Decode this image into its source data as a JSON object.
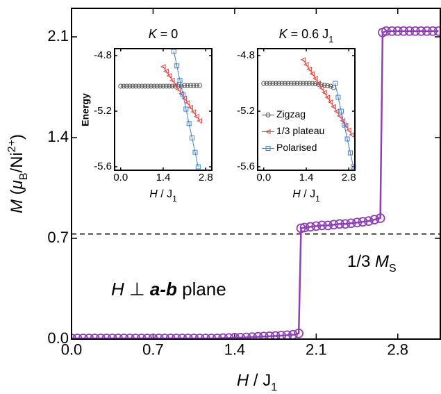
{
  "chart_data": [
    {
      "type": "line",
      "xlabel": [
        "H",
        " / J",
        "1"
      ],
      "ylabel": [
        "M",
        " (",
        "μ",
        "B",
        "/Ni",
        "2+",
        ")"
      ],
      "annotations": [
        [
          "1/3 ",
          "M",
          "S"
        ],
        [
          "H",
          " ⊥ ",
          "a-b",
          " plane"
        ]
      ],
      "ref_line": 0.73,
      "xlim": [
        0,
        3.165
      ],
      "ylim": [
        0,
        2.298
      ],
      "xticks": [
        {
          "value": 0,
          "label": "0.0"
        },
        0.7,
        1.4,
        2.1,
        2.8
      ],
      "yticks": [
        {
          "value": 0,
          "label": "0.0"
        },
        0.7,
        1.4,
        2.1
      ],
      "series": [
        {
          "color": "#8e3fb5",
          "marker": "circle",
          "x": [
            0,
            0.05,
            0.1,
            0.15,
            0.2,
            0.25,
            0.3,
            0.35,
            0.4,
            0.45,
            0.5,
            0.55,
            0.6,
            0.65,
            0.7,
            0.75,
            0.8,
            0.85,
            0.9,
            0.95,
            1,
            1.05,
            1.1,
            1.15,
            1.2,
            1.25,
            1.3,
            1.35,
            1.4,
            1.45,
            1.5,
            1.55,
            1.6,
            1.65,
            1.7,
            1.75,
            1.8,
            1.85,
            1.9,
            1.95,
            1.97,
            2.0,
            2.05,
            2.1,
            2.15,
            2.2,
            2.25,
            2.3,
            2.35,
            2.4,
            2.45,
            2.5,
            2.55,
            2.6,
            2.65,
            2.67,
            2.7,
            2.75,
            2.8,
            2.85,
            2.9,
            2.95,
            3.0,
            3.05,
            3.1,
            3.15
          ],
          "values": [
            0.005,
            0.005,
            0.005,
            0.005,
            0.005,
            0.005,
            0.005,
            0.005,
            0.005,
            0.005,
            0.005,
            0.005,
            0.005,
            0.005,
            0.005,
            0.005,
            0.005,
            0.005,
            0.005,
            0.005,
            0.005,
            0.005,
            0.005,
            0.005,
            0.005,
            0.005,
            0.007,
            0.008,
            0.01,
            0.01,
            0.012,
            0.014,
            0.016,
            0.018,
            0.02,
            0.022,
            0.024,
            0.027,
            0.03,
            0.04,
            0.77,
            0.775,
            0.78,
            0.785,
            0.79,
            0.79,
            0.795,
            0.8,
            0.8,
            0.805,
            0.81,
            0.815,
            0.82,
            0.83,
            0.84,
            2.13,
            2.14,
            2.14,
            2.14,
            2.14,
            2.14,
            2.14,
            2.14,
            2.14,
            2.14,
            2.14
          ]
        }
      ]
    },
    {
      "type": "scatter",
      "title": [
        "K",
        " = 0"
      ],
      "xlabel": [
        "H",
        " / J",
        "1"
      ],
      "ylabel": "Energy",
      "xlim": [
        -0.2,
        3.0
      ],
      "ylim": [
        -5.625,
        -4.75
      ],
      "xticks": [
        {
          "value": 0,
          "label": "0.0"
        },
        1.4,
        2.8
      ],
      "yticks": [
        -4.8,
        -5.2,
        -5.6
      ],
      "series": [
        {
          "name": "Zigzag",
          "color": "#555555",
          "marker": "circle",
          "x": [
            0,
            0.1,
            0.2,
            0.3,
            0.4,
            0.5,
            0.6,
            0.7,
            0.8,
            0.9,
            1,
            1.1,
            1.2,
            1.3,
            1.4,
            1.5,
            1.6,
            1.7,
            1.8,
            1.9,
            2,
            2.1,
            2.2,
            2.3,
            2.4,
            2.5,
            2.6
          ],
          "values": [
            -5.02,
            -5.02,
            -5.02,
            -5.02,
            -5.02,
            -5.02,
            -5.02,
            -5.02,
            -5.02,
            -5.02,
            -5.02,
            -5.02,
            -5.02,
            -5.02,
            -5.02,
            -5.02,
            -5.02,
            -5.02,
            -5.02,
            -5.02,
            -5.02,
            -5.015,
            -5.015,
            -5.015,
            -5.015,
            -5.015,
            -5.015
          ]
        },
        {
          "name": "1/3 plateau",
          "color": "#e8403a",
          "marker": "triangle",
          "x": [
            1.4,
            1.5,
            1.6,
            1.7,
            1.8,
            1.9,
            2,
            2.1,
            2.2,
            2.3,
            2.4,
            2.5,
            2.6
          ],
          "values": [
            -4.88,
            -4.913,
            -4.945,
            -4.978,
            -5.01,
            -5.043,
            -5.075,
            -5.108,
            -5.14,
            -5.173,
            -5.205,
            -5.238,
            -5.27
          ]
        },
        {
          "name": "Polarised",
          "color": "#3a7fd5",
          "marker": "square",
          "x": [
            1.75,
            1.85,
            1.95,
            2.05,
            2.15,
            2.25,
            2.35,
            2.45,
            2.55
          ],
          "values": [
            -4.77,
            -4.874,
            -4.978,
            -5.081,
            -5.185,
            -5.289,
            -5.393,
            -5.496,
            -5.6
          ]
        }
      ]
    },
    {
      "type": "scatter",
      "title": [
        "K",
        " = 0.6 J",
        "1"
      ],
      "xlabel": [
        "H",
        " / J",
        "1"
      ],
      "legend": "center left",
      "xlim": [
        -0.2,
        3.0
      ],
      "ylim": [
        -5.625,
        -4.75
      ],
      "xticks": [
        {
          "value": 0,
          "label": "0.0"
        },
        1.4,
        2.8
      ],
      "yticks": [
        -4.8,
        -5.2,
        -5.6
      ],
      "series": [
        {
          "name": "Zigzag",
          "color": "#555555",
          "marker": "circle",
          "x": [
            0,
            0.1,
            0.2,
            0.3,
            0.4,
            0.5,
            0.6,
            0.7,
            0.8,
            0.9,
            1,
            1.1,
            1.2,
            1.3,
            1.4,
            1.5,
            1.6,
            1.7,
            1.8,
            1.9,
            2,
            2.1,
            2.2,
            2.3
          ],
          "values": [
            -5.0,
            -5.0,
            -5.0,
            -5.0,
            -5.0,
            -5.0,
            -5.0,
            -5.0,
            -5.0,
            -5.0,
            -5.0,
            -5.0,
            -5.0,
            -5.0,
            -5.0,
            -5.0,
            -5.0,
            -5.003,
            -5.006,
            -5.01,
            -5.013,
            -5.017,
            -5.02,
            -5.03
          ]
        },
        {
          "name": "1/3 plateau",
          "color": "#e8403a",
          "marker": "triangle",
          "x": [
            1.3,
            1.4,
            1.5,
            1.6,
            1.7,
            1.8,
            1.9,
            2,
            2.1,
            2.2,
            2.3,
            2.4,
            2.5,
            2.6,
            2.7,
            2.8,
            2.9
          ],
          "values": [
            -4.83,
            -4.864,
            -4.898,
            -4.931,
            -4.965,
            -4.999,
            -5.033,
            -5.066,
            -5.1,
            -5.134,
            -5.168,
            -5.201,
            -5.235,
            -5.269,
            -5.303,
            -5.336,
            -5.37
          ]
        },
        {
          "name": "Polarised",
          "color": "#3a7fd5",
          "marker": "square",
          "x": [
            2.35,
            2.45,
            2.55,
            2.65,
            2.75,
            2.85,
            2.95
          ],
          "values": [
            -5.0,
            -5.1,
            -5.2,
            -5.3,
            -5.4,
            -5.5,
            -5.6
          ]
        }
      ]
    }
  ]
}
